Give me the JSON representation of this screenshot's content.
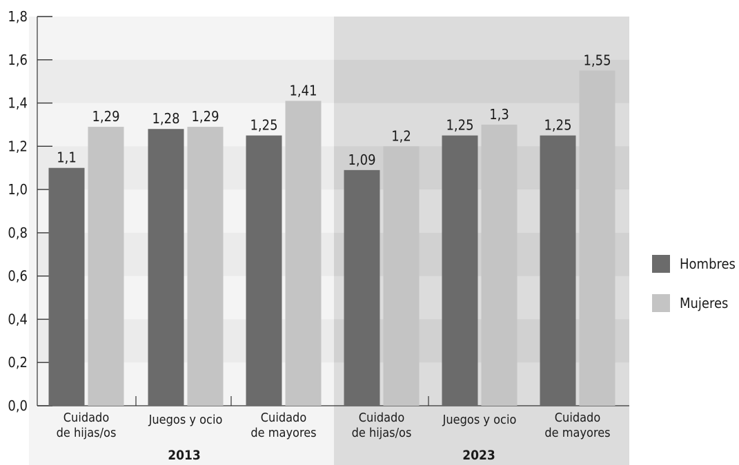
{
  "chart_data": {
    "type": "bar",
    "groups": [
      {
        "label": "2013",
        "categories": [
          "Cuidado\nde hijas/os",
          "Juegos y ocio",
          "Cuidado\nde mayores"
        ]
      },
      {
        "label": "2023",
        "categories": [
          "Cuidado\nde hijas/os",
          "Juegos y ocio",
          "Cuidado\nde mayores"
        ]
      }
    ],
    "series": [
      {
        "name": "Hombres",
        "color": "#6b6b6b",
        "values": [
          1.1,
          1.28,
          1.25,
          1.09,
          1.25,
          1.25
        ],
        "labels": [
          "1,1",
          "1,28",
          "1,25",
          "1,09",
          "1,25",
          "1,25"
        ]
      },
      {
        "name": "Mujeres",
        "color": "#c4c4c4",
        "values": [
          1.29,
          1.29,
          1.41,
          1.2,
          1.3,
          1.55
        ],
        "labels": [
          "1,29",
          "1,29",
          "1,41",
          "1,2",
          "1,3",
          "1,55"
        ]
      }
    ],
    "y_ticks": [
      "0,0",
      "0,2",
      "0,4",
      "0,6",
      "0,8",
      "1,0",
      "1,2",
      "1,4",
      "1,6",
      "1,8"
    ],
    "ylim": [
      0,
      1.8
    ],
    "legend_position": "right",
    "grid": false,
    "background_bands": true
  }
}
